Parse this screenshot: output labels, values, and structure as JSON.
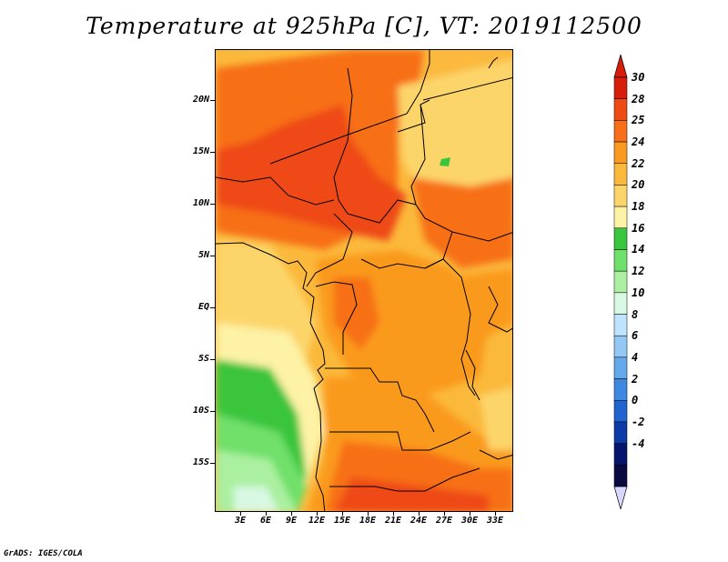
{
  "title": "Temperature at 925hPa [C], VT: 2019112500",
  "footer": "GrADS: IGES/COLA",
  "map": {
    "lat_labels": [
      "20N",
      "15N",
      "10N",
      "5N",
      "EQ",
      "5S",
      "10S",
      "15S"
    ],
    "lon_labels": [
      "3E",
      "6E",
      "9E",
      "12E",
      "15E",
      "18E",
      "21E",
      "24E",
      "27E",
      "30E",
      "33E"
    ],
    "lon_range": [
      0,
      35
    ],
    "lat_range": [
      -19,
      25
    ]
  },
  "colorbar": {
    "levels": [
      "30",
      "28",
      "25",
      "24",
      "22",
      "20",
      "18",
      "16",
      "14",
      "12",
      "10",
      "8",
      "6",
      "4",
      "2",
      "0",
      "-2",
      "-4"
    ],
    "colors": [
      "#d61e0a",
      "#ee4a14",
      "#f77019",
      "#fa9a1f",
      "#fbb93c",
      "#fcd56a",
      "#fdf2a5",
      "#3ac53e",
      "#6fe06a",
      "#aaf0a0",
      "#d8f8e3",
      "#bfe4ff",
      "#93c8f5",
      "#64a8ec",
      "#3f88e2",
      "#2064d0",
      "#0c3ba8",
      "#06146e",
      "#080a40"
    ],
    "over_color": "#d61e0a",
    "under_color": "#d8d8ff"
  }
}
